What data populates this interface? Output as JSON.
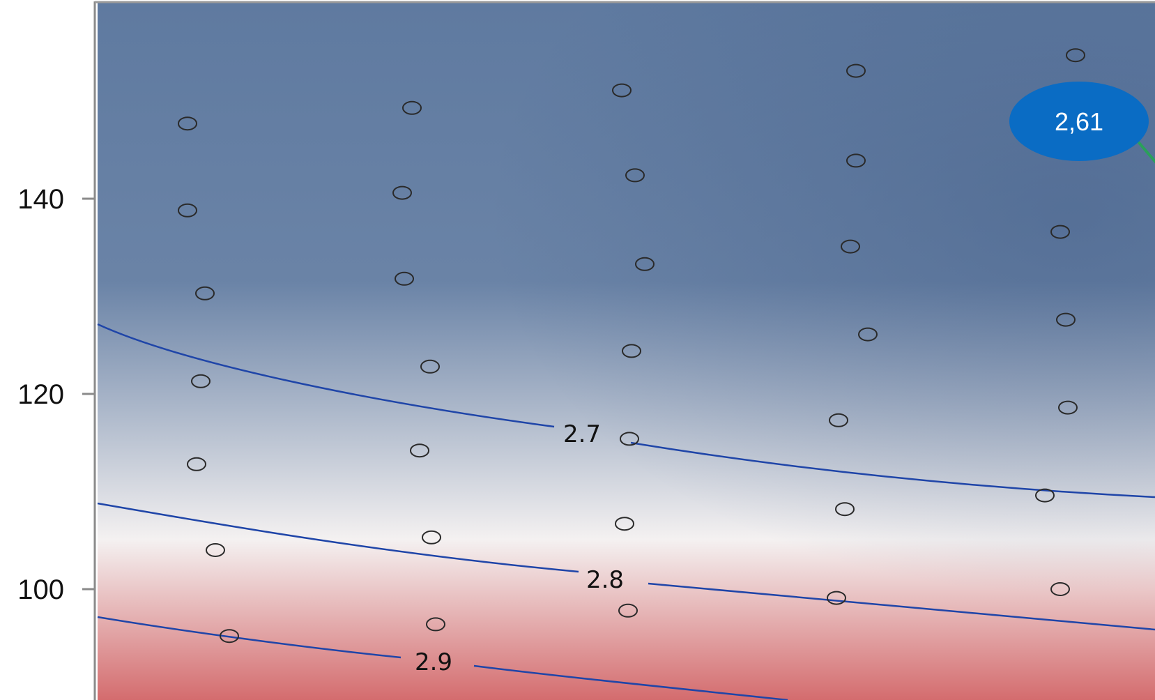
{
  "chart_data": {
    "type": "contour",
    "title": "",
    "xlabel": "",
    "ylabel": "",
    "ylim": [
      89,
      160
    ],
    "yticks": [
      100,
      120,
      140
    ],
    "ytick_labels": [
      "100",
      "120",
      "140"
    ],
    "x_tick_labels_visible": false,
    "grid": false,
    "colormap": {
      "low": "#5f7aa0",
      "mid": "#f4f1f1",
      "high": "#d46c6e"
    },
    "contour_color": "#1f45a8",
    "contours": [
      {
        "level": 2.7,
        "label": "2.7"
      },
      {
        "level": 2.8,
        "label": "2.8"
      },
      {
        "level": 2.9,
        "label": "2.9"
      }
    ],
    "points": [
      {
        "y": 147.7
      },
      {
        "y": 138.8
      },
      {
        "y": 130.3
      },
      {
        "y": 121.3
      },
      {
        "y": 112.8
      },
      {
        "y": 104.0
      },
      {
        "y": 95.2
      },
      {
        "y": 149.3
      },
      {
        "y": 140.6
      },
      {
        "y": 131.8
      },
      {
        "y": 122.8
      },
      {
        "y": 114.2
      },
      {
        "y": 105.3
      },
      {
        "y": 96.4
      },
      {
        "y": 151.1
      },
      {
        "y": 142.4
      },
      {
        "y": 133.3
      },
      {
        "y": 124.4
      },
      {
        "y": 115.4
      },
      {
        "y": 106.7
      },
      {
        "y": 97.8
      },
      {
        "y": 153.1
      },
      {
        "y": 143.9
      },
      {
        "y": 135.1
      },
      {
        "y": 126.1
      },
      {
        "y": 117.3
      },
      {
        "y": 108.2
      },
      {
        "y": 99.1
      },
      {
        "y": 154.7
      },
      {
        "y": 136.6
      },
      {
        "y": 127.6
      },
      {
        "y": 118.6
      },
      {
        "y": 109.6
      },
      {
        "y": 100.0
      }
    ],
    "callout": {
      "text": "2,61",
      "color": "#0a6cc4",
      "arrow_color": "#2aa05a"
    }
  }
}
